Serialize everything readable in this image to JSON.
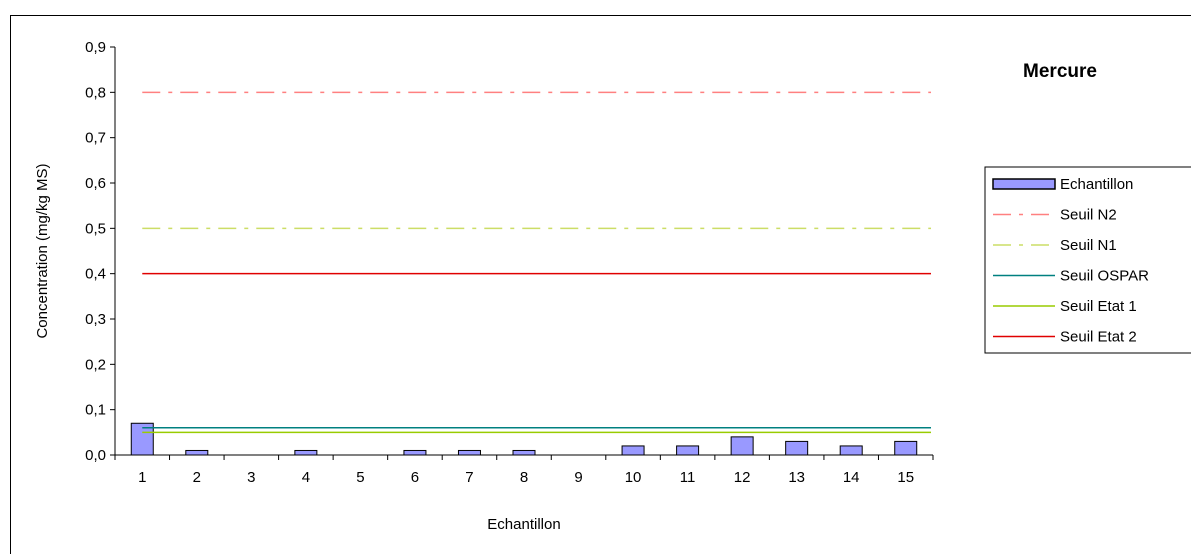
{
  "chart_data": {
    "type": "bar",
    "title": "Mercure",
    "xlabel": "Echantillon",
    "ylabel": "Concentration (mg/kg MS)",
    "ylim": [
      0,
      0.9
    ],
    "yticks": [
      "0,0",
      "0,1",
      "0,2",
      "0,3",
      "0,4",
      "0,5",
      "0,6",
      "0,7",
      "0,8",
      "0,9"
    ],
    "categories": [
      "1",
      "2",
      "3",
      "4",
      "5",
      "6",
      "7",
      "8",
      "9",
      "10",
      "11",
      "12",
      "13",
      "14",
      "15"
    ],
    "series": [
      {
        "name": "Echantillon",
        "kind": "bar",
        "color": "#9999ff",
        "values": [
          0.07,
          0.01,
          0,
          0.01,
          0,
          0.01,
          0.01,
          0.01,
          0,
          0.02,
          0.02,
          0.04,
          0.03,
          0.02,
          0.03
        ]
      },
      {
        "name": "Seuil N2",
        "kind": "line",
        "style": "dash-dot",
        "color": "#ff8080",
        "value": 0.8
      },
      {
        "name": "Seuil N1",
        "kind": "line",
        "style": "dash-dot",
        "color": "#ccdd66",
        "value": 0.5
      },
      {
        "name": "Seuil OSPAR",
        "kind": "line",
        "style": "solid",
        "color": "#008080",
        "value": 0.06
      },
      {
        "name": "Seuil Etat 1",
        "kind": "line",
        "style": "solid",
        "color": "#99cc00",
        "value": 0.05
      },
      {
        "name": "Seuil Etat 2",
        "kind": "line",
        "style": "solid",
        "color": "#e00000",
        "value": 0.4
      }
    ],
    "grid": false,
    "legend": "right"
  }
}
